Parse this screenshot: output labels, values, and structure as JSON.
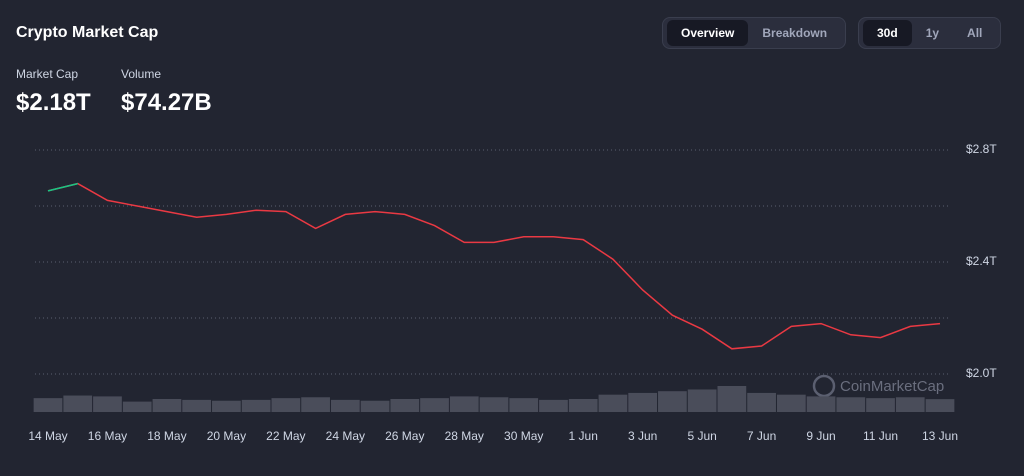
{
  "header": {
    "title": "Crypto Market Cap"
  },
  "stats": [
    {
      "label": "Market Cap",
      "value": "$2.18T"
    },
    {
      "label": "Volume",
      "value": "$74.27B"
    }
  ],
  "view_tabs": [
    {
      "label": "Overview",
      "active": true
    },
    {
      "label": "Breakdown",
      "active": false
    }
  ],
  "range_tabs": [
    {
      "label": "30d",
      "active": true
    },
    {
      "label": "1y",
      "active": false
    },
    {
      "label": "All",
      "active": false
    }
  ],
  "watermark": "CoinMarketCap",
  "chart_data": {
    "type": "line",
    "categories": [
      "14 May",
      null,
      "16 May",
      null,
      "18 May",
      null,
      "20 May",
      null,
      "22 May",
      null,
      "24 May",
      null,
      "26 May",
      null,
      "28 May",
      null,
      "30 May",
      null,
      "1 Jun",
      null,
      "3 Jun",
      null,
      "5 Jun",
      null,
      "7 Jun",
      null,
      "9 Jun",
      null,
      "11 Jun",
      null,
      "13 Jun"
    ],
    "series": [
      {
        "name": "Market Cap",
        "color": "#ea3943",
        "up_color": "#16c784",
        "values": [
          2.654,
          2.68,
          2.62,
          2.6,
          2.58,
          2.56,
          2.57,
          2.585,
          2.58,
          2.52,
          2.57,
          2.58,
          2.57,
          2.53,
          2.47,
          2.47,
          2.49,
          2.49,
          2.48,
          2.41,
          2.3,
          2.21,
          2.16,
          2.09,
          2.1,
          2.17,
          2.18,
          2.14,
          2.13,
          2.17,
          2.18
        ]
      },
      {
        "name": "Volume",
        "color": "#4a4d5a",
        "values": [
          80,
          95,
          90,
          60,
          75,
          70,
          65,
          70,
          80,
          85,
          70,
          65,
          75,
          80,
          90,
          85,
          80,
          70,
          75,
          100,
          110,
          120,
          130,
          150,
          110,
          100,
          90,
          85,
          80,
          85,
          74.27
        ]
      }
    ],
    "ylim": [
      2.0,
      2.8
    ],
    "yticks": [
      {
        "value": 2.0,
        "label": "$2.0T"
      },
      {
        "value": 2.4,
        "label": "$2.4T"
      },
      {
        "value": 2.8,
        "label": "$2.8T"
      }
    ],
    "minor_gridlines": [
      2.2,
      2.6
    ],
    "grid": true
  }
}
